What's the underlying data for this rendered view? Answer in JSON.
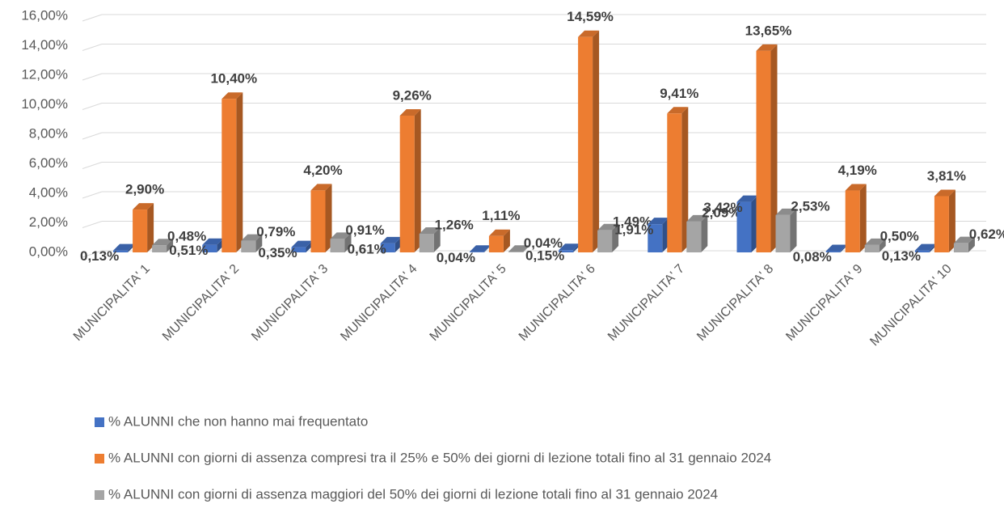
{
  "chart_data": {
    "type": "bar3d",
    "categories": [
      "MUNICIPALITA' 1",
      "MUNICIPALITA' 2",
      "MUNICIPALITA' 3",
      "MUNICIPALITA' 4",
      "MUNICIPALITA' 5",
      "MUNICIPALITA' 6",
      "MUNICIPALITA' 7",
      "MUNICIPALITA' 8",
      "MUNICIPALITA' 9",
      "MUNICIPALITA' 10"
    ],
    "series": [
      {
        "name": "% ALUNNI che non hanno mai frequentato",
        "color": "#4472c4",
        "values": [
          0.13,
          0.51,
          0.35,
          0.61,
          0.04,
          0.15,
          1.91,
          3.42,
          0.08,
          0.13
        ],
        "value_labels": [
          "0,13%",
          "0,51%",
          "0,35%",
          "0,61%",
          "0,04%",
          "0,15%",
          "1,91%",
          "3,42%",
          "0,08%",
          "0,13%"
        ]
      },
      {
        "name": "%  ALUNNI con giorni di assenza compresi tra il 25% e 50% dei giorni di lezione totali fino al 31 gennaio 2024",
        "color": "#ed7d31",
        "values": [
          2.9,
          10.4,
          4.2,
          9.26,
          1.11,
          14.59,
          9.41,
          13.65,
          4.19,
          3.81
        ],
        "value_labels": [
          "2,90%",
          "10,40%",
          "4,20%",
          "9,26%",
          "1,11%",
          "14,59%",
          "9,41%",
          "13,65%",
          "4,19%",
          "3,81%"
        ]
      },
      {
        "name": "% ALUNNI con giorni di assenza maggiori del 50% dei giorni di lezione totali fino al 31 gennaio 2024",
        "color": "#a5a5a5",
        "values": [
          0.48,
          0.79,
          0.91,
          1.26,
          0.04,
          1.49,
          2.09,
          2.53,
          0.5,
          0.62
        ],
        "value_labels": [
          "0,48%",
          "0,79%",
          "0,91%",
          "1,26%",
          "0,04%",
          "1,49%",
          "2,09%",
          "2,53%",
          "0,50%",
          "0,62%"
        ]
      }
    ],
    "ylim": [
      0,
      16
    ],
    "yticks": [
      {
        "value": 0,
        "label": "0,00%"
      },
      {
        "value": 2,
        "label": "2,00%"
      },
      {
        "value": 4,
        "label": "4,00%"
      },
      {
        "value": 6,
        "label": "6,00%"
      },
      {
        "value": 8,
        "label": "8,00%"
      },
      {
        "value": 10,
        "label": "10,00%"
      },
      {
        "value": 12,
        "label": "12,00%"
      },
      {
        "value": 14,
        "label": "14,00%"
      },
      {
        "value": 16,
        "label": "16,00%"
      }
    ],
    "grid": true,
    "legend": "bottom"
  }
}
